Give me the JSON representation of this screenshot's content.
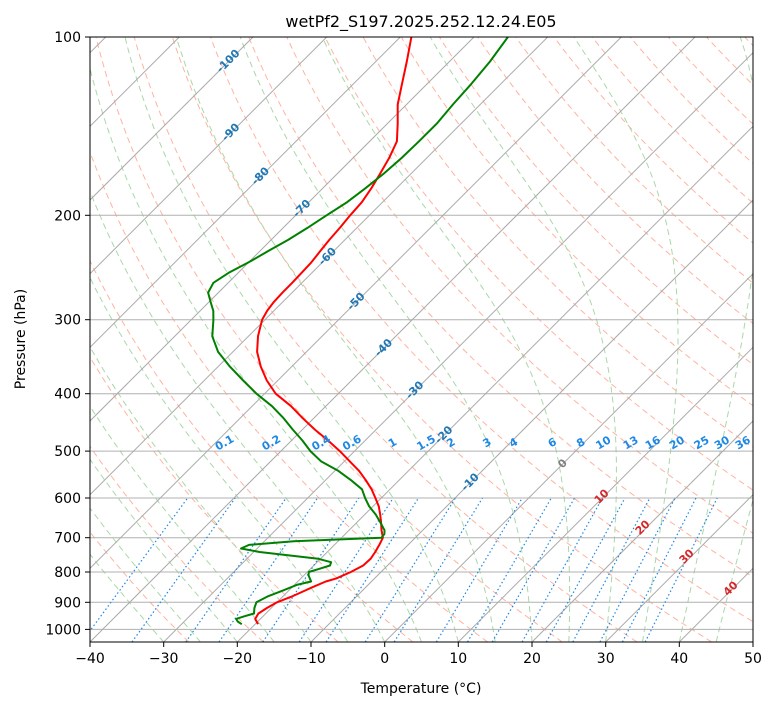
{
  "chart_data": {
    "type": "line",
    "subtype": "skew-t log-p diagram",
    "title": "wetPf2_S197.2025.252.12.24.E05",
    "xlabel": "Temperature (°C)",
    "ylabel": "Pressure (hPa)",
    "xlim": [
      -40,
      50
    ],
    "ylim": [
      1050,
      100
    ],
    "x_ticks": [
      -40,
      -30,
      -20,
      -10,
      0,
      10,
      20,
      30,
      40,
      50
    ],
    "x_tick_labels": [
      "−40",
      "−30",
      "−20",
      "−10",
      "0",
      "10",
      "20",
      "30",
      "40",
      "50"
    ],
    "y_ticks": [
      100,
      200,
      300,
      400,
      500,
      600,
      700,
      800,
      900,
      1000
    ],
    "y_tick_labels": [
      "100",
      "200",
      "300",
      "400",
      "500",
      "600",
      "700",
      "800",
      "900",
      "1000"
    ],
    "colors": {
      "temperature": "#ff0000",
      "dewpoint": "#008000",
      "grid": "#b0b0b0",
      "dry_adiabat": "#ffb3a0",
      "moist_adiabat": "#a8d8a8",
      "mixing_ratio": "#1e88e5",
      "isotherm_cold": "#1f77b4",
      "isotherm_warm": "#d62728",
      "isotherm_zero": "#808080",
      "isotherm_line": "#aaaaaa"
    },
    "series": [
      {
        "name": "Temperature",
        "pressure": [
          980,
          960,
          940,
          920,
          900,
          880,
          860,
          850,
          830,
          820,
          800,
          780,
          760,
          740,
          720,
          700,
          680,
          660,
          640,
          620,
          600,
          580,
          560,
          540,
          520,
          500,
          480,
          460,
          440,
          420,
          400,
          380,
          360,
          340,
          320,
          300,
          290,
          280,
          270,
          260,
          250,
          240,
          230,
          220,
          210,
          200,
          190,
          180,
          170,
          160,
          150,
          140,
          130,
          120,
          110,
          100
        ],
        "values": [
          -19.6,
          -20.7,
          -21.0,
          -20.6,
          -20.0,
          -18.8,
          -17.8,
          -17.3,
          -16.2,
          -15.2,
          -14.1,
          -13.3,
          -13.2,
          -13.5,
          -13.9,
          -14.4,
          -15.6,
          -16.7,
          -17.9,
          -19.2,
          -20.8,
          -22.5,
          -24.5,
          -26.7,
          -29.3,
          -32.0,
          -35.0,
          -38.3,
          -41.5,
          -44.7,
          -48.5,
          -51.5,
          -54.2,
          -56.7,
          -58.7,
          -60.4,
          -60.9,
          -61.2,
          -61.3,
          -61.3,
          -61.4,
          -61.5,
          -61.8,
          -62.1,
          -62.3,
          -62.6,
          -62.8,
          -63.4,
          -64.2,
          -65.1,
          -66.3,
          -68.6,
          -71.2,
          -73.4,
          -75.8,
          -78.5
        ]
      },
      {
        "name": "Dewpoint",
        "pressure": [
          980,
          970,
          960,
          950,
          940,
          920,
          900,
          880,
          860,
          840,
          830,
          810,
          800,
          790,
          780,
          770,
          760,
          740,
          730,
          720,
          710,
          700,
          690,
          680,
          660,
          640,
          620,
          600,
          580,
          560,
          540,
          520,
          500,
          480,
          460,
          440,
          420,
          400,
          380,
          360,
          340,
          320,
          300,
          290,
          280,
          270,
          260,
          250,
          240,
          230,
          220,
          210,
          200,
          190,
          180,
          170,
          160,
          150,
          140,
          130,
          120,
          110,
          100
        ],
        "values": [
          -21.8,
          -22.7,
          -23.3,
          -22.5,
          -21.6,
          -22.3,
          -22.8,
          -22.1,
          -20.8,
          -19.6,
          -18.2,
          -19.4,
          -19.8,
          -18.8,
          -17.8,
          -18.1,
          -20.3,
          -29.2,
          -32.2,
          -31.6,
          -26.0,
          -14.6,
          -14.7,
          -15.2,
          -16.8,
          -18.5,
          -20.5,
          -22.2,
          -23.8,
          -26.5,
          -29.5,
          -33.2,
          -36.0,
          -38.5,
          -41.3,
          -44.1,
          -47.3,
          -51.1,
          -54.7,
          -58.4,
          -62.0,
          -64.9,
          -67.0,
          -68.2,
          -69.8,
          -71.4,
          -72.0,
          -71.3,
          -70.0,
          -68.9,
          -67.7,
          -66.7,
          -65.8,
          -64.8,
          -64.2,
          -63.7,
          -63.4,
          -63.3,
          -63.3,
          -63.7,
          -64.0,
          -64.5,
          -65.4
        ]
      }
    ],
    "isotherm_labels": [
      "-100",
      "-90",
      "-80",
      "-70",
      "-60",
      "-50",
      "-40",
      "-30",
      "-20",
      "-10",
      "0",
      "10",
      "20",
      "30",
      "40"
    ],
    "mixing_ratio_labels": [
      "0.1",
      "0.2",
      "0.4",
      "0.6",
      "1",
      "1.5",
      "2",
      "3",
      "4",
      "6",
      "8",
      "10",
      "13",
      "16",
      "20",
      "25",
      "30",
      "36"
    ],
    "mixing_ratio_values": [
      0.1,
      0.2,
      0.4,
      0.6,
      1,
      1.5,
      2,
      3,
      4,
      6,
      8,
      10,
      13,
      16,
      20,
      25,
      30,
      36
    ]
  }
}
